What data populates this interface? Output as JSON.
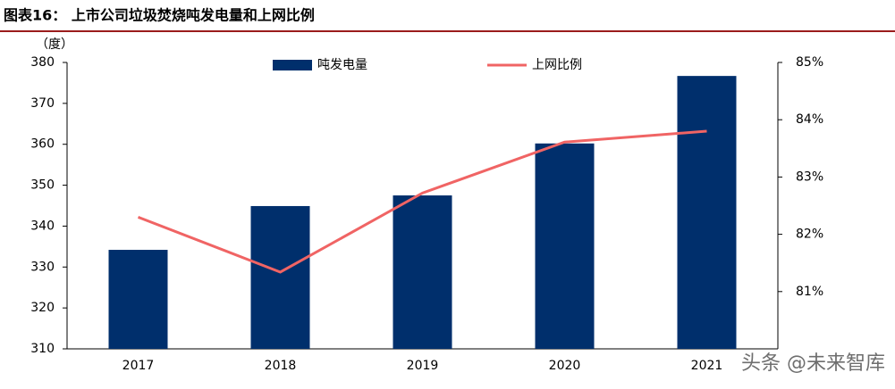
{
  "chart_data": {
    "type": "bar-line",
    "title": "图表16：  上市公司垃圾焚烧吨发电量和上网比例",
    "y_label": "（度）",
    "categories": [
      "2017",
      "2018",
      "2019",
      "2020",
      "2021"
    ],
    "series": [
      {
        "name": "吨发电量",
        "type": "bar",
        "color": "#002f6c",
        "values": [
          334.2,
          344.9,
          347.5,
          360.2,
          376.7
        ]
      },
      {
        "name": "上网比例",
        "type": "line",
        "axis": "y2",
        "color": "#f06464",
        "values": [
          82.3,
          81.34,
          82.72,
          83.61,
          83.8
        ]
      }
    ],
    "ylim": [
      310,
      380
    ],
    "yticks": [
      310,
      320,
      330,
      340,
      350,
      360,
      370,
      380
    ],
    "y2lim": [
      80,
      85
    ],
    "y2ticks": [
      {
        "value": 81,
        "label": "81%"
      },
      {
        "value": 82,
        "label": "82%"
      },
      {
        "value": 83,
        "label": "83%"
      },
      {
        "value": 84,
        "label": "84%"
      },
      {
        "value": 85,
        "label": "85%"
      }
    ],
    "legend": "top",
    "watermark": "头条 @未来智库"
  }
}
